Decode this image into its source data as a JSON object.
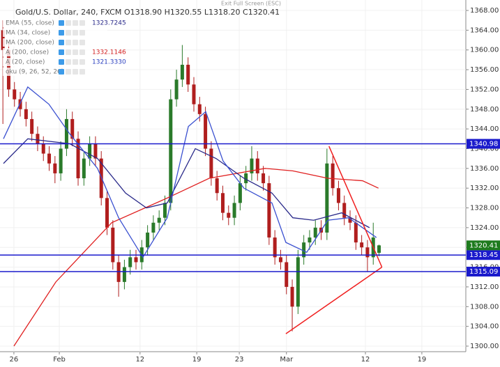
{
  "chart_data": {
    "type": "candlestick",
    "title": "Gold/U.S. Dollar, 240, FXCM",
    "ohlc_text": "O1318.90 H1320.55 L1318.20 C1320.41",
    "banner": "Exit Full Screen (ESC)",
    "indicators": [
      {
        "name": "EMA (55, close)",
        "value": "1323.7245",
        "color": "#2a2a8a"
      },
      {
        "name": "MA (34, close)",
        "value": null,
        "color": "#999999"
      },
      {
        "name": "MA (200, close)",
        "value": null,
        "color": "#999999"
      },
      {
        "name": "A (200, close)",
        "value": "1332.1146",
        "color": "#d32020"
      },
      {
        "name": "A (20, close)",
        "value": "1321.3330",
        "color": "#2a3fbf"
      },
      {
        "name": "oku (9, 26, 52, 26)",
        "value": null,
        "color": "#999999"
      }
    ],
    "xlim": [
      0,
      161
    ],
    "xticks": [
      {
        "value": 4.8,
        "label": "26"
      },
      {
        "value": 20.5,
        "label": "Feb"
      },
      {
        "value": 48.4,
        "label": "12"
      },
      {
        "value": 68,
        "label": "19"
      },
      {
        "value": 82.7,
        "label": "23"
      },
      {
        "value": 99,
        "label": "Mar"
      },
      {
        "value": 126.3,
        "label": "12"
      },
      {
        "value": 145.8,
        "label": "19"
      }
    ],
    "ylim": [
      1300,
      1368
    ],
    "yticks": [
      {
        "value": 1300,
        "label": "1300.00"
      },
      {
        "value": 1304,
        "label": "1304.00"
      },
      {
        "value": 1308,
        "label": "1308.00"
      },
      {
        "value": 1312,
        "label": "1312.00"
      },
      {
        "value": 1316,
        "label": "1316.00"
      },
      {
        "value": 1320,
        "label": "1320.00"
      },
      {
        "value": 1324,
        "label": "1324.00"
      },
      {
        "value": 1328,
        "label": "1328.00"
      },
      {
        "value": 1332,
        "label": "1332.00"
      },
      {
        "value": 1336,
        "label": "1336.00"
      },
      {
        "value": 1340,
        "label": "1340.00"
      },
      {
        "value": 1344,
        "label": "1344.00"
      },
      {
        "value": 1348,
        "label": "1348.00"
      },
      {
        "value": 1352,
        "label": "1352.00"
      },
      {
        "value": 1356,
        "label": "1356.00"
      },
      {
        "value": 1360,
        "label": "1360.00"
      },
      {
        "value": 1364,
        "label": "1364.00"
      },
      {
        "value": 1368,
        "label": "1368.00"
      }
    ],
    "grid": true,
    "up_color": "#2a7a2a",
    "down_color": "#b01e1e",
    "x": [
      1,
      3,
      5,
      7,
      9,
      11,
      13,
      15,
      17,
      19,
      21,
      23,
      25,
      27,
      29,
      31,
      33,
      35,
      37,
      39,
      41,
      43,
      45,
      47,
      49,
      51,
      53,
      55,
      57,
      59,
      61,
      63,
      65,
      67,
      69,
      71,
      73,
      75,
      77,
      79,
      81,
      83,
      85,
      87,
      89,
      91,
      93,
      95,
      97,
      99,
      101,
      103,
      105,
      107,
      109,
      111,
      113,
      115,
      117,
      119,
      121,
      123,
      125,
      127,
      129,
      131
    ],
    "open": [
      1364,
      1360,
      1352,
      1350,
      1348,
      1346,
      1343,
      1341,
      1339,
      1337,
      1335,
      1340,
      1346,
      1342,
      1334,
      1338,
      1341,
      1338,
      1330,
      1324,
      1317,
      1313,
      1316,
      1318,
      1317,
      1320,
      1323,
      1325,
      1326,
      1329,
      1350,
      1354,
      1357,
      1353,
      1349,
      1347,
      1340,
      1334,
      1331,
      1327,
      1326,
      1329,
      1333,
      1335,
      1338,
      1335,
      1333,
      1322,
      1318,
      1317,
      1312,
      1308,
      1318,
      1321,
      1322,
      1324,
      1323,
      1337,
      1332,
      1329,
      1326,
      1325,
      1321,
      1320,
      1318,
      1318.9
    ],
    "high": [
      1366,
      1361.5,
      1353.5,
      1351.5,
      1349.5,
      1347.5,
      1344.5,
      1342.5,
      1340.5,
      1338.5,
      1341.5,
      1348,
      1347.5,
      1343.5,
      1339.5,
      1342.5,
      1342.5,
      1339.5,
      1331.5,
      1325.5,
      1318.5,
      1317.5,
      1319.5,
      1319.5,
      1321.5,
      1324.5,
      1326.5,
      1327.5,
      1330.5,
      1352,
      1356,
      1361,
      1358.5,
      1354.5,
      1350.5,
      1348.5,
      1341.5,
      1335.5,
      1332.5,
      1328.5,
      1330.5,
      1334.5,
      1336.5,
      1340.5,
      1339.5,
      1336.5,
      1334.5,
      1323.5,
      1319.5,
      1318.5,
      1313.5,
      1319.5,
      1322.5,
      1323.5,
      1325.5,
      1325.5,
      1340,
      1338.5,
      1333.5,
      1330.5,
      1327.5,
      1326.5,
      1322.5,
      1321.5,
      1325,
      1320.55
    ],
    "low": [
      1345,
      1350.5,
      1348.5,
      1346.5,
      1344.5,
      1341.5,
      1339.5,
      1337.5,
      1335.5,
      1333,
      1333.5,
      1338.5,
      1340.5,
      1332.5,
      1332.5,
      1336.5,
      1336.5,
      1328.5,
      1322.5,
      1315.5,
      1310,
      1311.5,
      1314.5,
      1315.5,
      1315.5,
      1318.5,
      1321.5,
      1323.5,
      1324.5,
      1327.5,
      1348.5,
      1352.5,
      1351.5,
      1347.5,
      1345.5,
      1338.5,
      1332.5,
      1329.5,
      1325.5,
      1324.5,
      1324.5,
      1327.5,
      1331.5,
      1333.5,
      1333.5,
      1331.5,
      1320.5,
      1316.5,
      1315.5,
      1310.5,
      1303,
      1306.5,
      1316.5,
      1319.5,
      1320.5,
      1321.5,
      1321.5,
      1330.5,
      1327.5,
      1324.5,
      1323.5,
      1319.5,
      1318.5,
      1315,
      1316.5,
      1318.2
    ],
    "close": [
      1360,
      1352,
      1350,
      1348,
      1346,
      1343,
      1341,
      1339,
      1337,
      1335,
      1340,
      1346,
      1342,
      1334,
      1338,
      1341,
      1338,
      1330,
      1324,
      1317,
      1313,
      1316,
      1318,
      1317,
      1320,
      1323,
      1325,
      1326,
      1329,
      1350,
      1354,
      1357,
      1353,
      1349,
      1347,
      1340,
      1334,
      1331,
      1327,
      1326,
      1329,
      1333,
      1335,
      1338,
      1335,
      1333,
      1322,
      1318,
      1317,
      1312,
      1308,
      1318,
      1321,
      1322,
      1324,
      1323,
      1337,
      1332,
      1329,
      1326,
      1325,
      1321,
      1320,
      1318,
      1322,
      1320.41
    ],
    "moving_averages": [
      {
        "color": "#e02020",
        "x": [
          4.8,
          19.3,
          38.6,
          57.8,
          72.3,
          91.6,
          101.2,
          113.3,
          125.3,
          130.8
        ],
        "values": [
          1300,
          1313,
          1325,
          1330,
          1334,
          1336,
          1335.5,
          1334,
          1333.5,
          1332
        ]
      },
      {
        "color": "#2a2a8a",
        "x": [
          1.2,
          9.6,
          24.1,
          33.7,
          43.4,
          50.6,
          57.8,
          67.5,
          74.7,
          84.3,
          94,
          101.2,
          108.4,
          118.1,
          127.7
        ],
        "values": [
          1337,
          1342,
          1341,
          1338,
          1331,
          1328,
          1329,
          1340,
          1338,
          1334,
          1331,
          1326,
          1325.5,
          1327,
          1324
        ]
      },
      {
        "color": "#3a50d0",
        "x": [
          1.2,
          9.6,
          16.9,
          24.1,
          33.7,
          41,
          49.4,
          57.8,
          65.1,
          71.1,
          77.1,
          84.3,
          94,
          98.8,
          106,
          113.3,
          120.5,
          130.1
        ],
        "values": [
          1342,
          1352.5,
          1349,
          1343,
          1336,
          1326,
          1318,
          1326,
          1344.5,
          1347.5,
          1337.5,
          1332,
          1329,
          1321,
          1319,
          1325.5,
          1326,
          1322
        ]
      }
    ],
    "trendlines": [
      {
        "color": "#f02020",
        "x": [
          113.7,
          132
        ],
        "values": [
          1340.5,
          1316
        ]
      },
      {
        "color": "#f02020",
        "x": [
          98.8,
          132
        ],
        "values": [
          1302.5,
          1316
        ]
      }
    ],
    "levels": [
      {
        "value": 1340.98,
        "color": "#1a1acc"
      },
      {
        "value": 1318.45,
        "color": "#1a1acc"
      },
      {
        "value": 1315.09,
        "color": "#1a1acc"
      }
    ],
    "last_price": {
      "value": 1320.41,
      "color": "#1e7b1e"
    }
  }
}
